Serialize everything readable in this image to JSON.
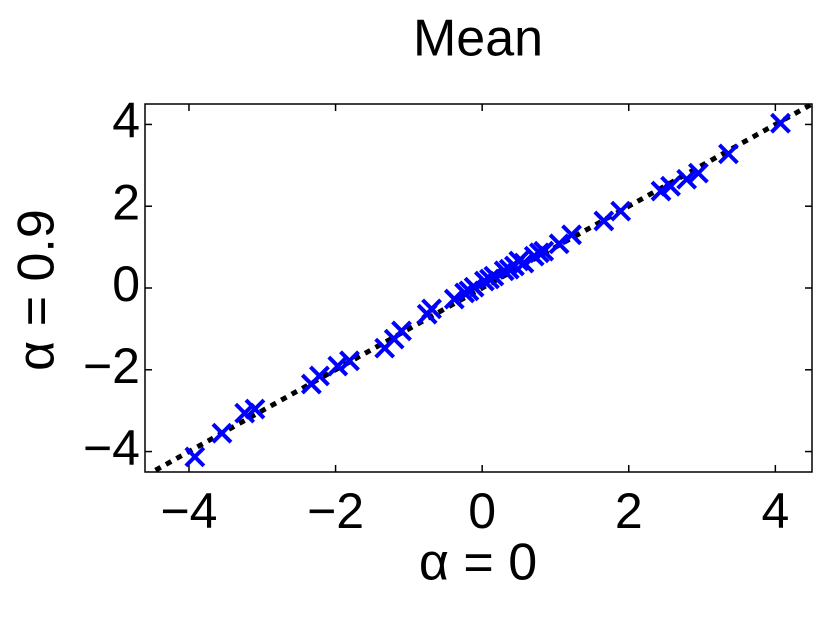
{
  "chart_data": {
    "type": "scatter",
    "title": "Mean",
    "x_label": "α = 0",
    "y_label": "α = 0.9",
    "x": [
      4.07,
      3.36,
      2.95,
      2.79,
      2.57,
      2.44,
      1.89,
      1.66,
      1.22,
      1.05,
      0.84,
      0.71,
      0.57,
      0.44,
      0.3,
      0.16,
      0.03,
      -0.11,
      -0.24,
      -0.38,
      -0.69,
      -0.75,
      -1.1,
      -1.2,
      -1.33,
      -1.81,
      -1.97,
      -2.22,
      -2.33,
      -3.1,
      -3.24,
      -3.55,
      -3.92,
      0.37,
      0.5,
      0.78,
      0.1,
      -0.18
    ],
    "values": [
      4.03,
      3.28,
      2.81,
      2.66,
      2.49,
      2.37,
      1.88,
      1.64,
      1.3,
      1.08,
      0.9,
      0.78,
      0.61,
      0.54,
      0.42,
      0.29,
      0.17,
      0.02,
      -0.12,
      -0.27,
      -0.51,
      -0.64,
      -1.05,
      -1.25,
      -1.47,
      -1.78,
      -1.91,
      -2.15,
      -2.35,
      -2.96,
      -3.06,
      -3.55,
      -4.13,
      0.46,
      0.66,
      0.86,
      0.22,
      -0.07
    ],
    "color": "#0000ff",
    "marker": "x",
    "reference_line": {
      "x": [
        -4.6,
        4.5
      ],
      "values": [
        -4.6,
        4.5
      ],
      "color": "#000000",
      "style": "dotted"
    },
    "xlim": [
      -4.6,
      4.5
    ],
    "ylim": [
      -4.5,
      4.5
    ],
    "xticks": [
      {
        "value": -4,
        "label": "−4"
      },
      {
        "value": -2,
        "label": "−2"
      },
      0,
      2,
      4
    ],
    "yticks": [
      {
        "value": -4,
        "label": "−4"
      },
      {
        "value": -2,
        "label": "−2"
      },
      0,
      2,
      4
    ],
    "grid": false
  }
}
